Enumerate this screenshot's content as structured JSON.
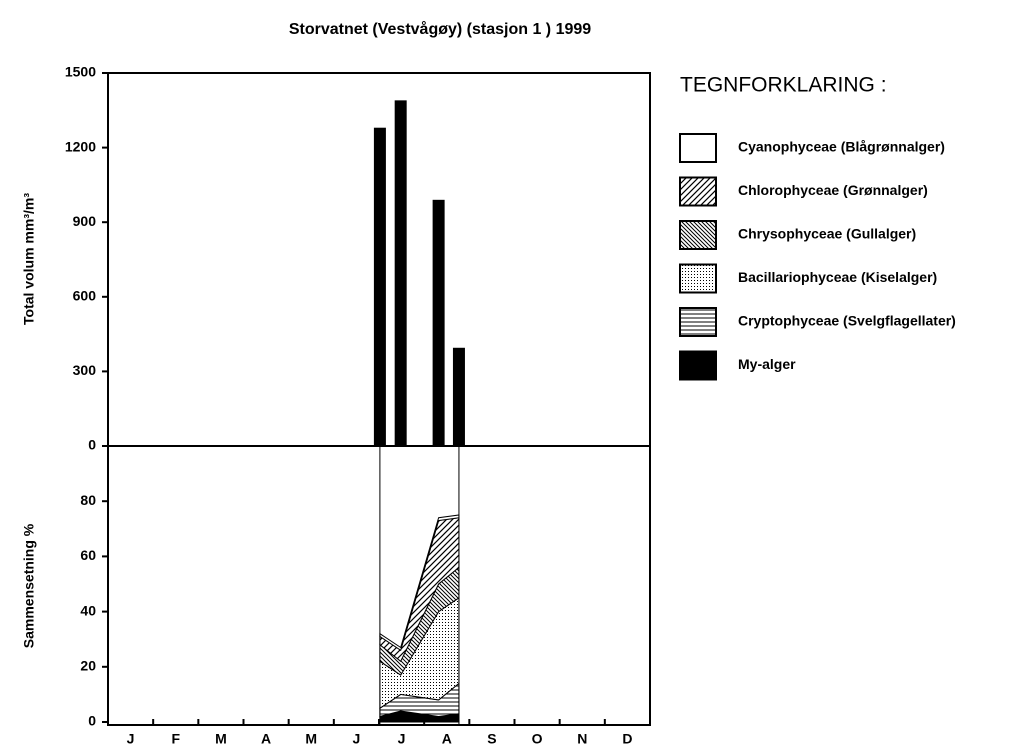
{
  "title": "Storvatnet (Vestvågøy) (stasjon 1 ) 1999",
  "legend_title": "TEGNFORKLARING :",
  "chart_data": [
    {
      "type": "bar",
      "ylabel": "Total volum mm³/m³",
      "x": [
        6.02,
        6.48,
        7.32,
        7.77
      ],
      "xlim": [
        0,
        12
      ],
      "values": [
        1280,
        1390,
        990,
        395
      ],
      "color": "#000000",
      "ylim": [
        0,
        1500
      ],
      "yticks": [
        0,
        300,
        600,
        900,
        1200,
        1500
      ]
    },
    {
      "type": "stacked_area",
      "ylabel": "Sammensetning %",
      "x": [
        6.02,
        6.48,
        7.32,
        7.77
      ],
      "xlim": [
        0,
        12
      ],
      "xticks": [
        1,
        2,
        3,
        4,
        5,
        6,
        7,
        8,
        9,
        10,
        11
      ],
      "month_labels": [
        "J",
        "F",
        "M",
        "A",
        "M",
        "J",
        "J",
        "A",
        "S",
        "O",
        "N",
        "D"
      ],
      "ylim": [
        0,
        100
      ],
      "yticks": [
        0,
        20,
        40,
        60,
        80
      ],
      "series": [
        {
          "name": "Cyanophyceae (Blågrønnalger)",
          "pattern": "none",
          "color": "#ffffff",
          "values": [
            1,
            1,
            1,
            1
          ]
        },
        {
          "name": "Chlorophyceae (Grønnalger)",
          "pattern": "diagonal",
          "color": "#000000",
          "values": [
            3,
            4,
            23,
            18
          ]
        },
        {
          "name": "Chrysophyceae (Gullalger)",
          "pattern": "backdiagonal",
          "color": "#000000",
          "values": [
            6,
            5,
            10,
            11
          ]
        },
        {
          "name": "Bacillariophyceae (Kiselalger)",
          "pattern": "dots",
          "color": "#000000",
          "values": [
            17,
            7,
            32,
            31
          ]
        },
        {
          "name": "Cryptophyceae (Svelgflagellater)",
          "pattern": "horizontal",
          "color": "#000000",
          "values": [
            3,
            6,
            6,
            11
          ]
        },
        {
          "name": "My-alger",
          "pattern": "solid",
          "color": "#000000",
          "values": [
            2,
            4,
            2,
            3
          ]
        }
      ]
    }
  ]
}
